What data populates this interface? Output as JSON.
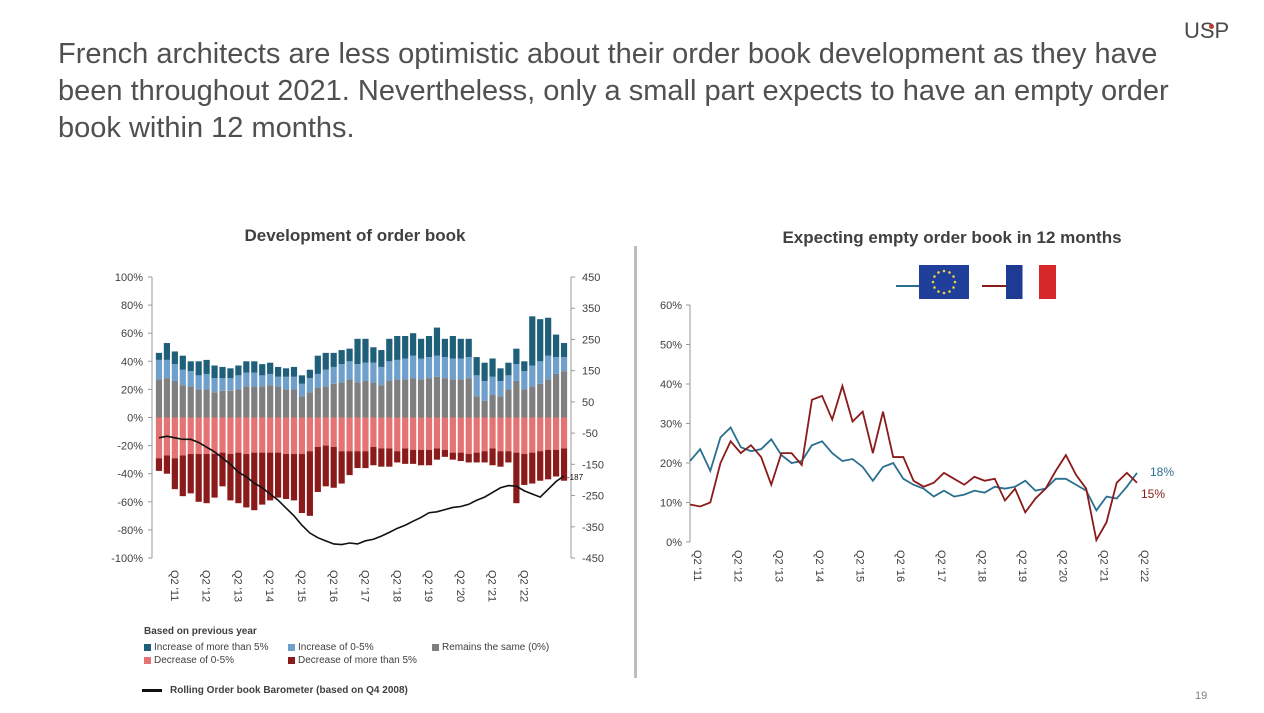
{
  "headline": "French architects are less optimistic about their order book development as they have been throughout 2021. Nevertheless, only a small part expects to have an empty order book within 12 months.",
  "logo": "USP",
  "page_number": "19",
  "colors": {
    "inc_more5": "#1f5f7a",
    "inc_0_5": "#6fa0cc",
    "same": "#7f7f7f",
    "dec_0_5": "#e57373",
    "dec_more5": "#8b1a1a",
    "barometer": "#111111",
    "eu_line": "#2a6f8f",
    "fr_line": "#8b1a1a"
  },
  "legend": {
    "header": "Based on previous year",
    "inc_more5": "Increase of more than 5%",
    "inc_0_5": "Increase of 0-5%",
    "same": "Remains the same  (0%)",
    "dec_0_5": "Decrease of 0-5%",
    "dec_more5": "Decrease of more than 5%",
    "barometer": "Rolling Order book Barometer (based on Q4 2008)"
  },
  "chart_data": [
    {
      "type": "bar",
      "title": "Development of order book",
      "ylim": [
        -100,
        100
      ],
      "y_ticks": [
        "100%",
        "80%",
        "60%",
        "40%",
        "20%",
        "0%",
        "-20%",
        "-40%",
        "-60%",
        "-80%",
        "-100%"
      ],
      "y2lim": [
        -450,
        450
      ],
      "y2_ticks": [
        "450",
        "350",
        "250",
        "150",
        "50",
        "-50",
        "-150",
        "-250",
        "-350",
        "-450"
      ],
      "x_ticks": [
        "Q2 '11",
        "Q2 '12",
        "Q2 '13",
        "Q2 '14",
        "Q2 '15",
        "Q2 '16",
        "Q2 '17",
        "Q2 '18",
        "Q2 '19",
        "Q2 '20",
        "Q2 '21",
        "Q2 '22"
      ],
      "end_label": "-187",
      "series": [
        {
          "name": "Remains the same  (0%)",
          "stack": "pos",
          "values": [
            27,
            28,
            26,
            23,
            22,
            20,
            20,
            18,
            19,
            19,
            20,
            22,
            22,
            22,
            23,
            22,
            20,
            20,
            15,
            18,
            21,
            22,
            24,
            25,
            27,
            25,
            26,
            25,
            23,
            26,
            27,
            27,
            28,
            27,
            28,
            29,
            28,
            27,
            27,
            28,
            15,
            12,
            16,
            15,
            20,
            26,
            20,
            22,
            24,
            27,
            31,
            33
          ]
        },
        {
          "name": "Increase of 0-5%",
          "stack": "pos",
          "values": [
            14,
            13,
            12,
            11,
            11,
            10,
            11,
            10,
            9,
            9,
            10,
            10,
            10,
            8,
            8,
            7,
            9,
            9,
            9,
            10,
            10,
            12,
            12,
            13,
            13,
            13,
            13,
            14,
            13,
            14,
            14,
            15,
            16,
            15,
            15,
            15,
            15,
            15,
            15,
            15,
            15,
            14,
            13,
            11,
            10,
            12,
            13,
            15,
            16,
            17,
            12,
            10
          ]
        },
        {
          "name": "Increase of more than 5%",
          "stack": "pos",
          "values": [
            5,
            12,
            9,
            10,
            7,
            10,
            10,
            9,
            8,
            7,
            7,
            8,
            8,
            8,
            8,
            7,
            6,
            7,
            6,
            6,
            13,
            12,
            10,
            10,
            9,
            18,
            17,
            11,
            12,
            16,
            17,
            16,
            16,
            14,
            15,
            20,
            13,
            16,
            14,
            13,
            13,
            13,
            13,
            9,
            9,
            11,
            7,
            35,
            30,
            27,
            16,
            10
          ]
        },
        {
          "name": "Decrease of 0-5%",
          "stack": "neg",
          "values": [
            -29,
            -27,
            -29,
            -27,
            -26,
            -26,
            -26,
            -26,
            -25,
            -26,
            -25,
            -26,
            -25,
            -25,
            -25,
            -25,
            -26,
            -26,
            -26,
            -24,
            -21,
            -20,
            -21,
            -24,
            -24,
            -24,
            -24,
            -21,
            -22,
            -22,
            -24,
            -22,
            -23,
            -23,
            -23,
            -22,
            -23,
            -25,
            -25,
            -26,
            -25,
            -24,
            -22,
            -24,
            -24,
            -25,
            -26,
            -25,
            -24,
            -23,
            -23,
            -22
          ]
        },
        {
          "name": "Decrease of more than 5%",
          "stack": "neg",
          "values": [
            -9,
            -13,
            -22,
            -29,
            -28,
            -34,
            -35,
            -31,
            -24,
            -33,
            -36,
            -38,
            -41,
            -37,
            -34,
            -32,
            -32,
            -33,
            -42,
            -46,
            -32,
            -29,
            -29,
            -23,
            -17,
            -12,
            -12,
            -13,
            -13,
            -13,
            -8,
            -11,
            -10,
            -11,
            -11,
            -8,
            -5,
            -5,
            -6,
            -6,
            -7,
            -8,
            -12,
            -11,
            -8,
            -36,
            -22,
            -22,
            -21,
            -21,
            -19,
            -23
          ]
        },
        {
          "name": "Rolling Order book Barometer (based on Q4 2008)",
          "type": "line",
          "axis": "y2",
          "values": [
            -65,
            -60,
            -65,
            -70,
            -70,
            -80,
            -95,
            -110,
            -130,
            -150,
            -175,
            -190,
            -210,
            -225,
            -245,
            -265,
            -290,
            -315,
            -345,
            -370,
            -385,
            -395,
            -405,
            -407,
            -402,
            -405,
            -395,
            -390,
            -380,
            -368,
            -355,
            -345,
            -332,
            -320,
            -305,
            -302,
            -295,
            -288,
            -285,
            -278,
            -265,
            -255,
            -240,
            -225,
            -218,
            -220,
            -235,
            -245,
            -255,
            -230,
            -205,
            -187
          ]
        }
      ]
    },
    {
      "type": "line",
      "title": "Expecting empty order book in 12 months",
      "ylim": [
        0,
        60
      ],
      "y_ticks": [
        "60%",
        "50%",
        "40%",
        "30%",
        "20%",
        "10%",
        "0%"
      ],
      "x_ticks": [
        "Q2 '11",
        "Q2 '12",
        "Q2 '13",
        "Q2 '14",
        "Q2 '15",
        "Q2 '16",
        "Q2 '17",
        "Q2 '18",
        "Q2 '19",
        "Q2 '20",
        "Q2 '21",
        "Q2 '22"
      ],
      "series": [
        {
          "name": "EU",
          "end_label": "18%",
          "values": [
            20.5,
            23.5,
            18,
            26.5,
            29,
            24,
            23,
            23.5,
            26,
            22,
            20,
            20.5,
            24.5,
            25.5,
            22.5,
            20.5,
            21,
            19,
            15.5,
            19,
            20,
            16,
            14.5,
            13.5,
            11.5,
            13,
            11.5,
            12,
            13,
            12.5,
            14,
            13.5,
            14,
            15.5,
            13,
            13.5,
            16,
            16,
            14.5,
            13,
            8,
            11.5,
            11,
            14,
            17.5
          ]
        },
        {
          "name": "France",
          "end_label": "15%",
          "values": [
            9.5,
            9,
            10,
            20,
            25.5,
            22.5,
            24.5,
            21.5,
            14.5,
            22.5,
            22.5,
            19.5,
            36,
            37,
            31,
            39.5,
            30.5,
            33,
            22.5,
            33,
            21.5,
            21.5,
            15.5,
            14,
            15,
            17.5,
            16,
            14.5,
            16.5,
            15.5,
            16,
            10.5,
            13.5,
            7.5,
            11,
            13.5,
            18,
            22,
            17,
            13.5,
            0.5,
            5,
            15,
            17.5,
            15
          ]
        }
      ]
    }
  ]
}
